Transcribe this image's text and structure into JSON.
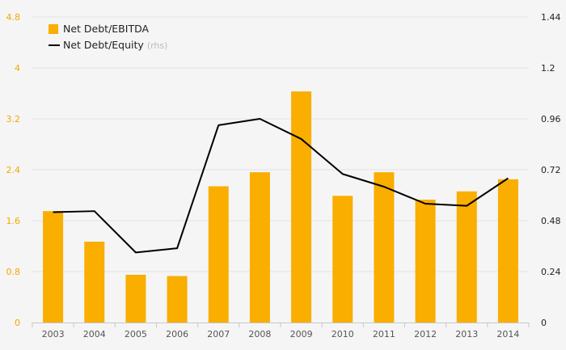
{
  "chart_data": {
    "type": "bar",
    "categories": [
      "2003",
      "2004",
      "2005",
      "2006",
      "2007",
      "2008",
      "2009",
      "2010",
      "2011",
      "2012",
      "2013",
      "2014"
    ],
    "series": [
      {
        "name": "Net Debt/EBITDA",
        "type": "bar",
        "axis": "left",
        "color": "#f9ae00",
        "values": [
          1.75,
          1.27,
          0.75,
          0.73,
          2.14,
          2.36,
          3.63,
          1.99,
          2.36,
          1.93,
          2.06,
          2.25
        ]
      },
      {
        "name": "Net Debt/Equity",
        "name_note": "(rhs)",
        "type": "line",
        "axis": "right",
        "color": "#000000",
        "values": [
          0.52,
          0.525,
          0.33,
          0.35,
          0.93,
          0.96,
          0.865,
          0.7,
          0.64,
          0.56,
          0.55,
          0.68
        ]
      }
    ],
    "y_left": {
      "ylim": [
        0,
        4.8
      ],
      "ticks": [
        "0",
        "0.8",
        "1.6",
        "2.4",
        "3.2",
        "4",
        "4.8"
      ]
    },
    "y_right": {
      "ylim": [
        0,
        1.44
      ],
      "ticks": [
        "0",
        "0.24",
        "0.48",
        "0.72",
        "0.96",
        "1.2",
        "1.44"
      ]
    },
    "grid": "horizontal",
    "legend": "top-left",
    "title": "",
    "xlabel": "",
    "ylabel": ""
  }
}
